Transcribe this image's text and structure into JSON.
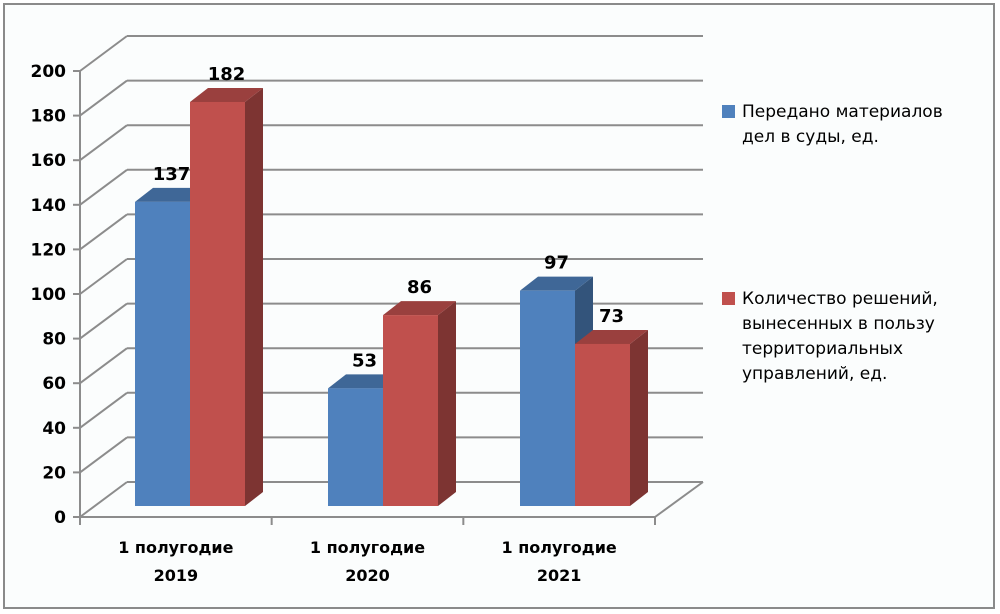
{
  "chart_data": {
    "type": "bar",
    "variant": "3d-clustered-column",
    "title": "",
    "xlabel": "",
    "ylabel": "",
    "ylim": [
      0,
      200
    ],
    "ytick_step": 20,
    "yticks": [
      "0",
      "20",
      "40",
      "60",
      "80",
      "100",
      "120",
      "140",
      "160",
      "180",
      "200"
    ],
    "categories": [
      "1 полугодие\n2019",
      "1 полугодие\n2020",
      "1 полугодие\n2021"
    ],
    "series": [
      {
        "name": "Передано материалов дел в суды, ед.",
        "color": "#4f81bd",
        "values": [
          137,
          53,
          97
        ]
      },
      {
        "name": "Количество решений, вынесенных в пользу территориальных управлений, ед.",
        "color": "#c0504d",
        "values": [
          182,
          86,
          73
        ]
      }
    ],
    "grid": true,
    "legend_position": "right",
    "data_labels": true
  },
  "legend": {
    "items": [
      {
        "text": "Передано материалов\nдел в суды, ед.",
        "color": "#4f81bd"
      },
      {
        "text": "Количество решений,\nвынесенных в пользу\nтерриториальных\nуправлений, ед.",
        "color": "#c0504d"
      }
    ]
  }
}
